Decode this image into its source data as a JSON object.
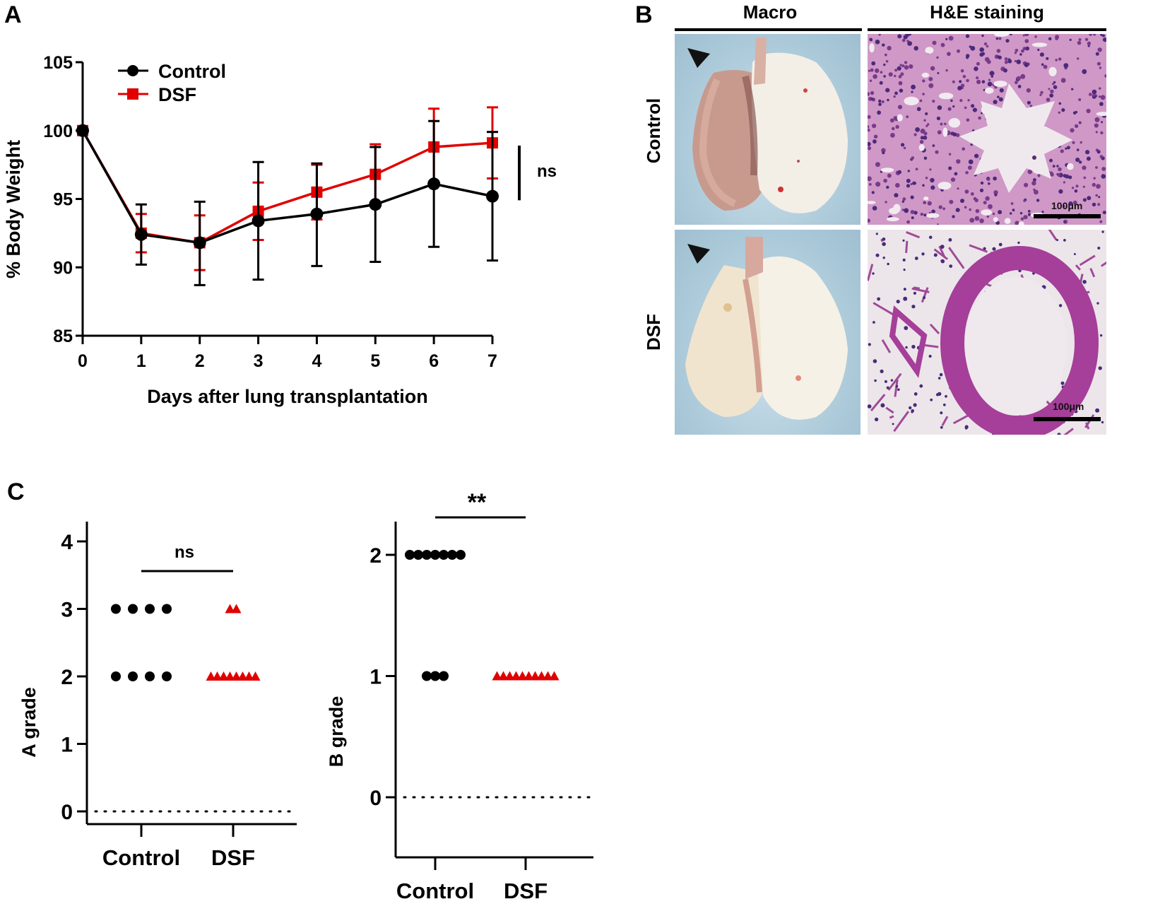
{
  "panels": {
    "A": {
      "letter": "A",
      "chart_data": {
        "type": "line",
        "title": "",
        "xlabel": "Days after lung transplantation",
        "ylabel": "% Body Weight",
        "x": [
          0,
          1,
          2,
          3,
          4,
          5,
          6,
          7
        ],
        "xticks": [
          "0",
          "1",
          "2",
          "3",
          "4",
          "5",
          "6",
          "7"
        ],
        "yticks": [
          "85",
          "90",
          "95",
          "100",
          "105"
        ],
        "ylim": [
          85,
          105
        ],
        "xlim": [
          0,
          7
        ],
        "grid": false,
        "legend_position": "top-left",
        "series": [
          {
            "name": "Control",
            "color": "#000000",
            "marker": "circle",
            "values": [
              100,
              92.4,
              91.8,
              93.4,
              93.9,
              94.6,
              96.1,
              95.2
            ],
            "err_low": [
              100,
              90.2,
              88.7,
              89.1,
              90.1,
              90.4,
              91.5,
              90.5
            ],
            "err_high": [
              100,
              94.6,
              94.8,
              97.7,
              97.6,
              98.8,
              100.7,
              99.9
            ]
          },
          {
            "name": "DSF",
            "color": "#e00000",
            "marker": "square",
            "values": [
              100,
              92.5,
              91.8,
              94.1,
              95.5,
              96.8,
              98.8,
              99.1
            ],
            "err_low": [
              100,
              91.1,
              89.8,
              92.0,
              93.5,
              94.7,
              96.0,
              96.5
            ],
            "err_high": [
              100,
              93.9,
              93.8,
              96.2,
              97.5,
              99.0,
              101.6,
              101.7
            ]
          }
        ],
        "annotations": [
          {
            "text": "ns",
            "type": "significance",
            "span_y": [
              94.9,
              98.9
            ]
          }
        ]
      }
    },
    "B": {
      "letter": "B",
      "columns": [
        "Macro",
        "H&E staining"
      ],
      "rows": [
        "Control",
        "DSF"
      ],
      "scale_bar_label": "100μm",
      "arrowhead": "arrowhead-marker"
    },
    "C": {
      "letter": "C",
      "chart_data": [
        {
          "type": "scatter",
          "ylabel": "A grade",
          "categories": [
            "Control",
            "DSF"
          ],
          "yticks": [
            "0",
            "1",
            "2",
            "3",
            "4"
          ],
          "ylim": [
            -0.25,
            4.25
          ],
          "reference_line": 0,
          "series": [
            {
              "name": "Control",
              "color": "#000000",
              "marker": "circle",
              "values": [
                3,
                3,
                3,
                3,
                2,
                2,
                2,
                2
              ]
            },
            {
              "name": "DSF",
              "color": "#e00000",
              "marker": "triangle",
              "values": [
                3,
                3,
                2,
                2,
                2,
                2,
                2,
                2,
                2,
                2
              ]
            }
          ],
          "annotations": [
            {
              "text": "ns",
              "type": "significance"
            }
          ]
        },
        {
          "type": "scatter",
          "ylabel": "B grade",
          "categories": [
            "Control",
            "DSF"
          ],
          "yticks": [
            "0",
            "1",
            "2"
          ],
          "ylim": [
            -0.25,
            2.25
          ],
          "reference_line": 0,
          "series": [
            {
              "name": "Control",
              "color": "#000000",
              "marker": "circle",
              "values": [
                2,
                2,
                2,
                2,
                2,
                2,
                2,
                1,
                1,
                1
              ]
            },
            {
              "name": "DSF",
              "color": "#e00000",
              "marker": "triangle",
              "values": [
                1,
                1,
                1,
                1,
                1,
                1,
                1,
                1,
                1,
                1
              ]
            }
          ],
          "annotations": [
            {
              "text": "**",
              "type": "significance"
            }
          ]
        }
      ]
    }
  }
}
